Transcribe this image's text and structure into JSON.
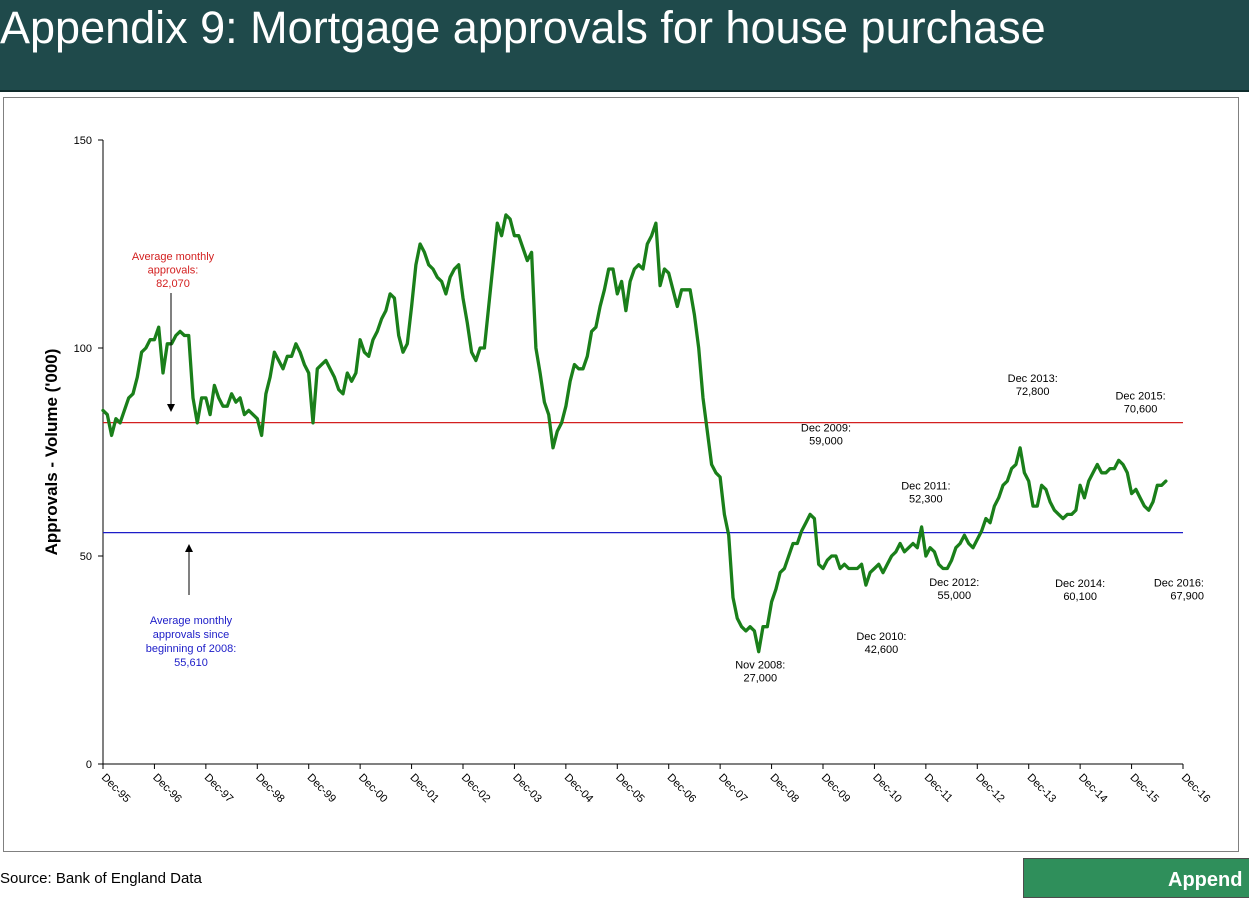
{
  "header": {
    "title": "Appendix 9: Mortgage approvals for house purchase"
  },
  "footer": {
    "source": "Source: Bank of England Data",
    "next_button": "Append"
  },
  "colors": {
    "series": "#1a7f1a",
    "avg_pre": "#d32020",
    "avg_post": "#1c1cc8",
    "title_bg": "#1f4a4b",
    "button_bg": "#2f8f5b"
  },
  "chart_data": {
    "type": "line",
    "title": "",
    "xlabel": "",
    "ylabel": "Approvals - Volume ('000)",
    "ylim": [
      0,
      150
    ],
    "yticks": [
      0,
      50,
      100,
      150
    ],
    "ytick_labels": [
      "0",
      "50",
      "100",
      "150"
    ],
    "x_tick_labels": [
      "Dec-95",
      "Dec-96",
      "Dec-97",
      "Dec-98",
      "Dec-99",
      "Dec-00",
      "Dec-01",
      "Dec-02",
      "Dec-03",
      "Dec-04",
      "Dec-05",
      "Dec-06",
      "Dec-07",
      "Dec-08",
      "Dec-09",
      "Dec-10",
      "Dec-11",
      "Dec-12",
      "Dec-13",
      "Dec-14",
      "Dec-15",
      "Dec-16"
    ],
    "grid": false,
    "legend": "none",
    "series": [
      {
        "frequency": "monthly",
        "start": "Dec-95",
        "values": [
          85,
          84,
          79,
          83,
          82,
          85,
          88,
          89,
          93,
          99,
          100,
          102,
          102,
          105,
          94,
          101,
          101,
          103,
          104,
          103,
          103,
          88,
          82,
          88,
          88,
          84,
          91,
          88,
          86,
          86,
          89,
          87,
          88,
          84,
          85,
          84,
          83,
          79,
          89,
          93,
          99,
          97,
          95,
          98,
          98,
          101,
          99,
          96,
          94,
          82,
          95,
          96,
          97,
          95,
          93,
          90,
          89,
          94,
          92,
          94,
          102,
          99,
          98,
          102,
          104,
          107,
          109,
          113,
          112,
          103,
          99,
          101,
          110,
          120,
          125,
          123,
          120,
          119,
          117,
          116,
          113,
          117,
          119,
          120,
          112,
          106,
          99,
          97,
          100,
          100,
          110,
          120,
          130,
          127,
          132,
          131,
          127,
          127,
          124,
          121,
          123,
          100,
          94,
          87,
          84,
          76,
          80,
          82,
          86,
          92,
          96,
          95,
          95,
          98,
          104,
          105,
          110,
          114,
          119,
          119,
          113,
          116,
          109,
          116,
          119,
          120,
          119,
          125,
          127,
          130,
          115,
          119,
          118,
          114,
          110,
          114,
          114,
          114,
          108,
          100,
          88,
          80,
          72,
          70,
          69,
          60,
          55,
          40,
          35,
          33,
          32,
          33,
          32,
          27,
          33,
          33,
          39,
          42,
          46,
          47,
          50,
          53,
          53,
          56,
          58,
          60,
          59,
          48,
          47,
          49,
          50,
          50,
          47,
          48,
          47,
          47,
          47,
          48,
          43,
          46,
          47,
          48,
          46,
          48,
          50,
          51,
          53,
          51,
          52,
          53,
          52,
          57,
          50,
          52,
          51,
          48,
          47,
          47,
          49,
          52,
          53,
          55,
          53,
          52,
          54,
          56,
          59,
          58,
          62,
          64,
          67,
          68,
          71,
          72,
          76,
          70,
          68,
          62,
          62,
          67,
          66,
          63,
          61,
          60,
          59,
          60,
          60,
          61,
          67,
          64,
          68,
          70,
          72,
          70,
          70,
          71,
          71,
          73,
          72,
          70,
          65,
          66,
          64,
          62,
          61,
          63,
          67,
          67,
          68
        ]
      }
    ],
    "reference_lines": [
      {
        "name": "Average monthly approvals: 82,070",
        "value": 82.07
      },
      {
        "name": "Average monthly approvals since beginning of 2008: 55,610",
        "value": 55.61
      }
    ],
    "annotations": [
      {
        "lines": [
          "Average monthly",
          "approvals:",
          "82,070"
        ]
      },
      {
        "lines": [
          "Average monthly",
          "approvals since",
          "beginning of 2008:",
          "55,610"
        ]
      },
      {
        "lines": [
          "Nov 2008:",
          "27,000"
        ],
        "x": "Nov-08",
        "y": 27.0
      },
      {
        "lines": [
          "Dec 2009:",
          "59,000"
        ],
        "x": "Dec-09",
        "y": 59.0
      },
      {
        "lines": [
          "Dec 2010:",
          "42,600"
        ],
        "x": "Dec-10",
        "y": 42.6
      },
      {
        "lines": [
          "Dec 2011:",
          "52,300"
        ],
        "x": "Dec-11",
        "y": 52.3
      },
      {
        "lines": [
          "Dec 2012:",
          "55,000"
        ],
        "x": "Dec-12",
        "y": 55.0
      },
      {
        "lines": [
          "Dec 2013:",
          "72,800"
        ],
        "x": "Dec-13",
        "y": 72.8
      },
      {
        "lines": [
          "Dec 2014:",
          "60,100"
        ],
        "x": "Dec-14",
        "y": 60.1
      },
      {
        "lines": [
          "Dec 2015:",
          "70,600"
        ],
        "x": "Dec-15",
        "y": 70.6
      },
      {
        "lines": [
          "Dec 2016:",
          "67,900"
        ],
        "x": "Dec-16",
        "y": 67.9
      }
    ]
  }
}
